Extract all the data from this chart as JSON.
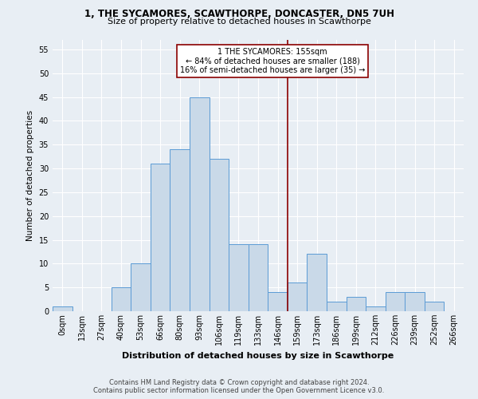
{
  "title_line1": "1, THE SYCAMORES, SCAWTHORPE, DONCASTER, DN5 7UH",
  "title_line2": "Size of property relative to detached houses in Scawthorpe",
  "xlabel": "Distribution of detached houses by size in Scawthorpe",
  "ylabel": "Number of detached properties",
  "bar_labels": [
    "0sqm",
    "13sqm",
    "27sqm",
    "40sqm",
    "53sqm",
    "66sqm",
    "80sqm",
    "93sqm",
    "106sqm",
    "119sqm",
    "133sqm",
    "146sqm",
    "159sqm",
    "173sqm",
    "186sqm",
    "199sqm",
    "212sqm",
    "226sqm",
    "239sqm",
    "252sqm",
    "266sqm"
  ],
  "bar_values": [
    1,
    0,
    0,
    5,
    10,
    31,
    34,
    45,
    32,
    14,
    14,
    4,
    6,
    12,
    2,
    3,
    1,
    4,
    4,
    2,
    0
  ],
  "bar_color": "#c9d9e8",
  "bar_edge_color": "#5b9bd5",
  "ylim": [
    0,
    57
  ],
  "yticks": [
    0,
    5,
    10,
    15,
    20,
    25,
    30,
    35,
    40,
    45,
    50,
    55
  ],
  "property_label": "1 THE SYCAMORES: 155sqm",
  "annotation_line1": "← 84% of detached houses are smaller (188)",
  "annotation_line2": "16% of semi-detached houses are larger (35) →",
  "vline_color": "#8b0000",
  "annotation_box_facecolor": "#ffffff",
  "annotation_box_edgecolor": "#8b0000",
  "footer_line1": "Contains HM Land Registry data © Crown copyright and database right 2024.",
  "footer_line2": "Contains public sector information licensed under the Open Government Licence v3.0.",
  "background_color": "#e8eef4",
  "grid_color": "#ffffff",
  "vline_x": 11.5,
  "title1_fontsize": 8.5,
  "title2_fontsize": 8.0,
  "ylabel_fontsize": 7.5,
  "xlabel_fontsize": 8.0,
  "tick_fontsize": 7.0,
  "annot_fontsize": 7.0,
  "footer_fontsize": 6.0
}
